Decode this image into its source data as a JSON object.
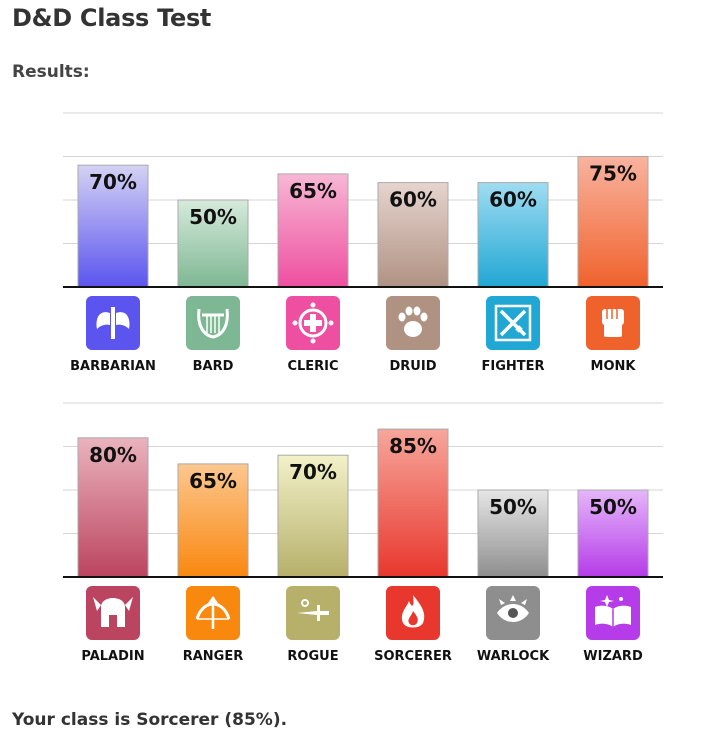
{
  "page": {
    "title": "D&D Class Test",
    "subtitle": "Results:",
    "result_text": "Your class is Sorcerer (85%)."
  },
  "chart_data": [
    {
      "type": "bar",
      "ylim": [
        0,
        100
      ],
      "grid": true,
      "categories": [
        "BARBARIAN",
        "BARD",
        "CLERIC",
        "DRUID",
        "FIGHTER",
        "MONK"
      ],
      "values": [
        70,
        50,
        65,
        60,
        60,
        75
      ],
      "value_labels": [
        "70%",
        "50%",
        "65%",
        "60%",
        "60%",
        "75%"
      ],
      "colors": [
        [
          "#d4d2f4",
          "#5b54ef"
        ],
        [
          "#d6eadc",
          "#7eb793"
        ],
        [
          "#f7b7d4",
          "#ee4fa0"
        ],
        [
          "#e6d4ce",
          "#b09283"
        ],
        [
          "#9fdcf2",
          "#21a7d3"
        ],
        [
          "#f8b39f",
          "#f0622c"
        ]
      ],
      "icons": [
        "barbarian-axe-icon",
        "bard-lyre-icon",
        "cleric-holy-symbol-icon",
        "druid-paw-icon",
        "fighter-swords-icon",
        "monk-fist-icon"
      ]
    },
    {
      "type": "bar",
      "ylim": [
        0,
        100
      ],
      "grid": true,
      "categories": [
        "PALADIN",
        "RANGER",
        "ROGUE",
        "SORCERER",
        "WARLOCK",
        "WIZARD"
      ],
      "values": [
        80,
        65,
        70,
        85,
        50,
        50
      ],
      "value_labels": [
        "80%",
        "65%",
        "70%",
        "85%",
        "50%",
        "50%"
      ],
      "colors": [
        [
          "#eab3bd",
          "#bb4460"
        ],
        [
          "#fcc78f",
          "#f9880f"
        ],
        [
          "#f3f1c9",
          "#b6b06a"
        ],
        [
          "#f7a69b",
          "#e8372d"
        ],
        [
          "#e6e6e6",
          "#8e8e8e"
        ],
        [
          "#e5b6fa",
          "#b53ce8"
        ]
      ],
      "icons": [
        "paladin-helmet-icon",
        "ranger-bow-icon",
        "rogue-dagger-icon",
        "sorcerer-flame-icon",
        "warlock-eye-icon",
        "wizard-book-icon"
      ]
    }
  ]
}
